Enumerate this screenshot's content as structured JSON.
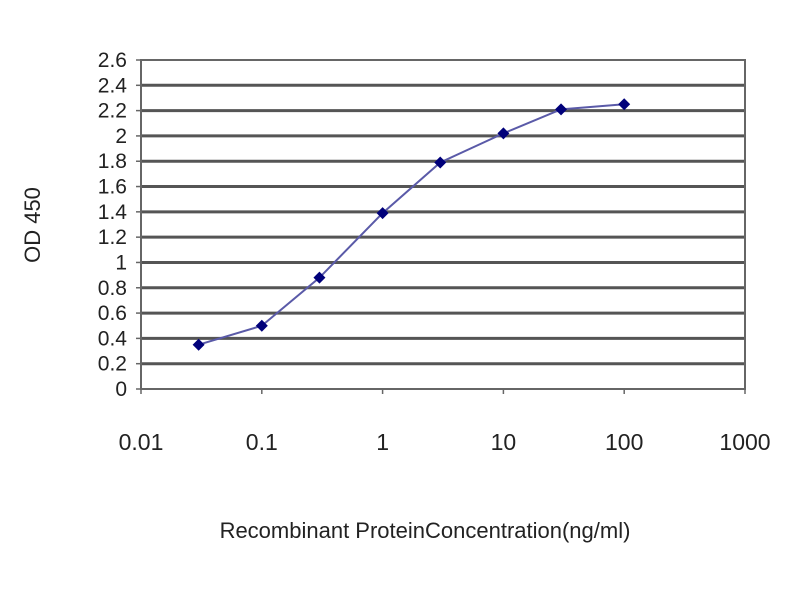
{
  "chart_data": {
    "type": "line",
    "title": "",
    "xlabel": "Recombinant ProteinConcentration(ng/ml)",
    "ylabel": "OD 450",
    "x_scale": "log",
    "xlim": [
      0.01,
      1000
    ],
    "ylim": [
      0,
      2.6
    ],
    "x_ticks": [
      "0.01",
      "0.1",
      "1",
      "10",
      "100",
      "1000"
    ],
    "y_ticks": [
      "0",
      "0.2",
      "0.4",
      "0.6",
      "0.8",
      "1",
      "1.2",
      "1.4",
      "1.6",
      "1.8",
      "2",
      "2.2",
      "2.4",
      "2.6"
    ],
    "grid": "horizontal",
    "series": [
      {
        "x": [
          0.03,
          0.1,
          0.3,
          1,
          3,
          10,
          30,
          100
        ],
        "y": [
          0.35,
          0.5,
          0.88,
          1.39,
          1.79,
          2.02,
          2.21,
          2.25
        ],
        "color": "#00007a",
        "line_color": "#5a5aa8"
      }
    ]
  }
}
